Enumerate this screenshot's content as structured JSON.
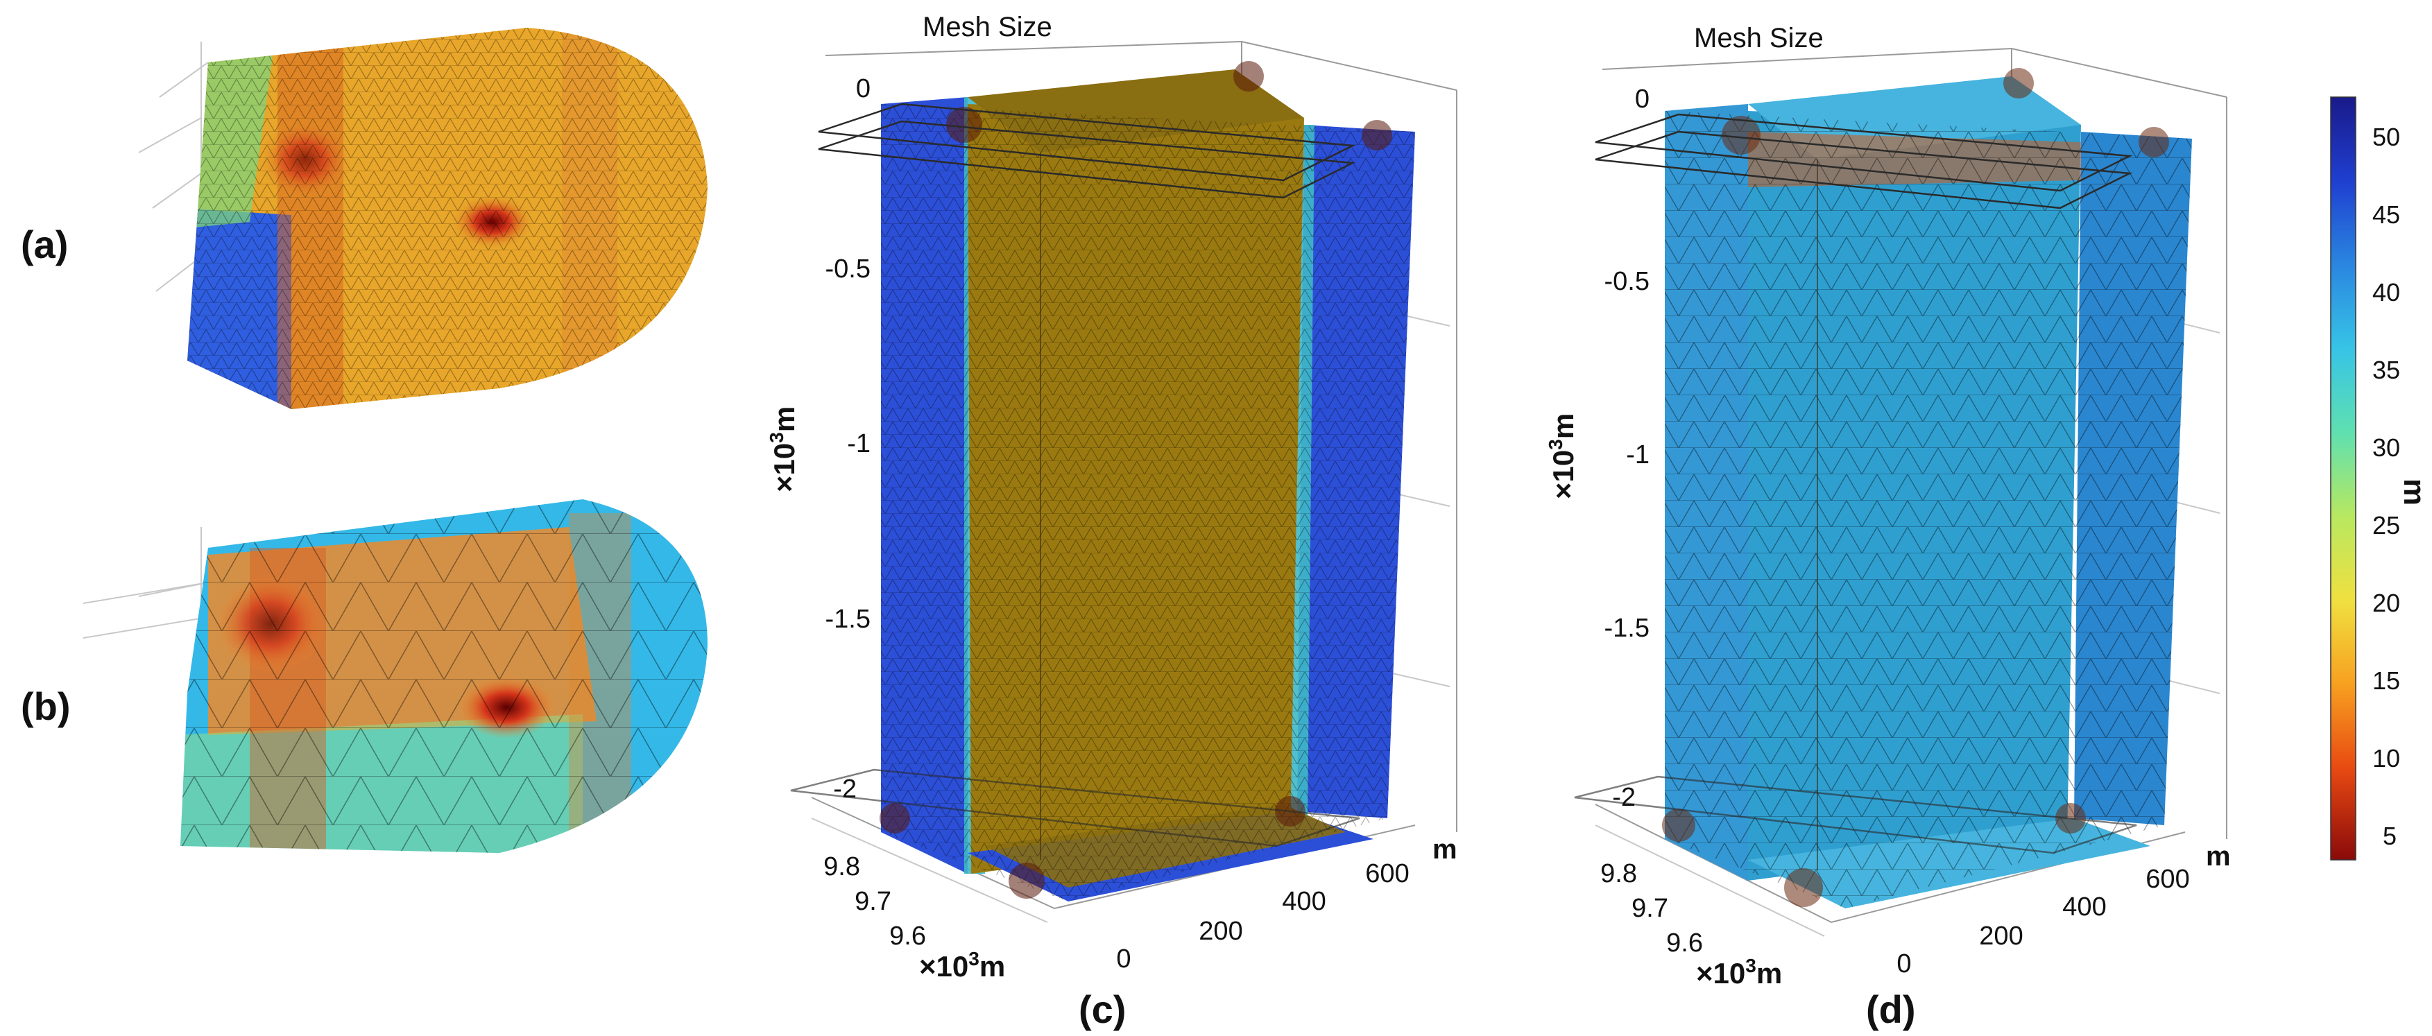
{
  "panels": {
    "a": {
      "label": "(a)",
      "colors": {
        "main": "#e8a62a",
        "side": "#2f5ee0",
        "edge": "#7fd67a"
      }
    },
    "b": {
      "label": "(b)",
      "colors": {
        "main": "#f08a2a",
        "side": "#34b8e8",
        "edge": "#8ee08a"
      }
    },
    "c": {
      "label": "(c)",
      "title": "Mesh Size",
      "z_ticks": [
        "0",
        "-0.5",
        "-1",
        "-1.5",
        "-2"
      ],
      "z_label_prefix": "×10",
      "z_label_exp": "3",
      "z_label_unit": "m",
      "y_ticks": [
        "9.8",
        "9.7",
        "9.6"
      ],
      "y_label_prefix": "×10",
      "y_label_exp": "3",
      "y_label_unit": "m",
      "x_ticks": [
        "0",
        "200",
        "400",
        "600"
      ],
      "x_unit": "m",
      "colors": {
        "front": "#9a7a10",
        "side": "#2c4fd8",
        "rim": "#3fb8c8",
        "top": "#8a6e12"
      }
    },
    "d": {
      "label": "(d)",
      "title": "Mesh Size",
      "z_ticks": [
        "0",
        "-0.5",
        "-1",
        "-1.5",
        "-2"
      ],
      "z_label_prefix": "×10",
      "z_label_exp": "3",
      "z_label_unit": "m",
      "y_ticks": [
        "9.8",
        "9.7",
        "9.6"
      ],
      "y_label_prefix": "×10",
      "y_label_exp": "3",
      "y_label_unit": "m",
      "x_ticks": [
        "0",
        "200",
        "400",
        "600"
      ],
      "x_unit": "m",
      "colors": {
        "front": "#2f9fd0",
        "side": "#2a86cf",
        "rim": "#49b9e0",
        "top": "#46b4de",
        "band": "#d45a1a"
      }
    }
  },
  "colorbar": {
    "ticks": [
      "50",
      "45",
      "40",
      "35",
      "30",
      "25",
      "20",
      "15",
      "10",
      "5"
    ],
    "unit": "m",
    "colormap": "jet-reversed",
    "colors": [
      "#1a1a8a",
      "#1f3fd0",
      "#2a86e0",
      "#37c4e6",
      "#5fe0b0",
      "#b8e860",
      "#f0e040",
      "#f7a020",
      "#e84a12",
      "#8a0a0a"
    ]
  }
}
